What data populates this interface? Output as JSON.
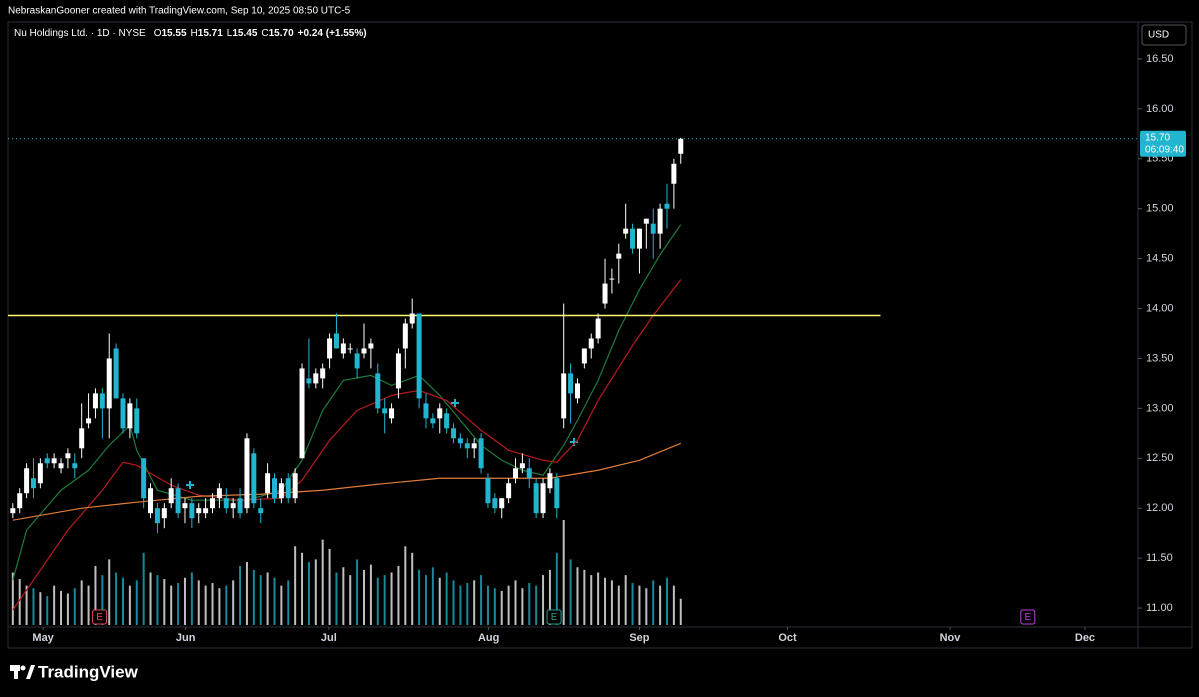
{
  "header": {
    "credit": "NebraskanGooner created with TradingView.com, Sep 10, 2025 08:50 UTC-5",
    "currency": "USD",
    "brand": "TradingView"
  },
  "chart_data": {
    "type": "candlestick",
    "legend": {
      "name": "Nu Holdings Ltd. · 1D · NYSE",
      "fields": [
        {
          "label": "O",
          "value": "15.55"
        },
        {
          "label": "H",
          "value": "15.71"
        },
        {
          "label": "L",
          "value": "15.45"
        },
        {
          "label": "C",
          "value": "15.70"
        }
      ],
      "change": "+0.24 (+1.55%)"
    },
    "up_color": "#ffffff",
    "down_color": "#22b5d0",
    "open": [
      11.95,
      12.0,
      12.15,
      12.3,
      12.25,
      12.5,
      12.45,
      12.4,
      12.5,
      12.45,
      12.6,
      12.85,
      13.0,
      13.15,
      13.0,
      13.6,
      13.1,
      12.8,
      13.0,
      12.5,
      11.95,
      12.0,
      11.9,
      12.05,
      12.2,
      12.0,
      12.05,
      11.95,
      11.95,
      12.0,
      12.1,
      12.1,
      12.0,
      12.1,
      12.0,
      12.55,
      12.0,
      12.15,
      12.3,
      12.1,
      12.3,
      12.1,
      12.5,
      13.3,
      13.25,
      13.3,
      13.5,
      13.75,
      13.55,
      13.6,
      13.55,
      13.55,
      13.6,
      13.35,
      13.0,
      12.9,
      13.2,
      13.6,
      13.85,
      13.95,
      13.05,
      12.9,
      12.9,
      12.95,
      12.8,
      12.7,
      12.65,
      12.6,
      12.7,
      12.3,
      12.1,
      12.0,
      12.1,
      12.3,
      12.4,
      12.4,
      12.25,
      11.95,
      12.2,
      12.3,
      12.9,
      13.35,
      13.1,
      13.45,
      13.6,
      13.7,
      14.05,
      14.3,
      14.5,
      14.75,
      14.8,
      14.6,
      14.85,
      14.85,
      14.75,
      15.05,
      15.25,
      15.55
    ],
    "high": [
      12.05,
      12.2,
      12.45,
      12.5,
      12.5,
      12.55,
      12.55,
      12.5,
      12.6,
      12.55,
      13.05,
      13.15,
      13.2,
      13.2,
      13.75,
      13.65,
      13.15,
      13.1,
      13.1,
      12.5,
      12.25,
      12.05,
      12.05,
      12.3,
      12.25,
      12.1,
      12.1,
      12.05,
      12.1,
      12.15,
      12.25,
      12.2,
      12.1,
      12.2,
      12.75,
      12.6,
      12.1,
      12.45,
      12.35,
      12.3,
      12.35,
      12.4,
      13.45,
      13.7,
      13.4,
      13.45,
      13.75,
      13.95,
      13.7,
      13.65,
      13.6,
      13.85,
      13.7,
      13.45,
      13.1,
      13.05,
      13.6,
      13.9,
      14.1,
      13.95,
      13.15,
      12.95,
      13.05,
      13.0,
      12.85,
      12.75,
      12.7,
      12.7,
      12.75,
      12.35,
      12.15,
      12.1,
      12.3,
      12.5,
      12.55,
      12.5,
      12.3,
      12.3,
      12.4,
      12.35,
      14.05,
      13.45,
      13.3,
      13.6,
      13.75,
      13.95,
      14.5,
      14.4,
      14.65,
      15.05,
      14.85,
      14.8,
      14.9,
      15.0,
      15.05,
      15.25,
      15.5,
      15.71
    ],
    "low": [
      11.9,
      11.95,
      12.1,
      12.1,
      12.2,
      12.4,
      12.4,
      12.35,
      12.4,
      12.3,
      12.5,
      12.8,
      12.9,
      12.7,
      12.7,
      13.1,
      12.75,
      12.7,
      12.7,
      12.0,
      11.9,
      11.75,
      11.8,
      12.0,
      11.9,
      11.85,
      11.8,
      11.85,
      11.9,
      11.95,
      12.0,
      11.95,
      11.9,
      11.9,
      11.95,
      12.0,
      11.85,
      12.1,
      12.05,
      12.05,
      12.05,
      12.05,
      12.5,
      13.2,
      13.2,
      13.2,
      13.4,
      13.6,
      13.5,
      13.55,
      13.3,
      13.5,
      13.4,
      12.95,
      12.75,
      12.85,
      13.1,
      13.4,
      13.8,
      13.0,
      12.8,
      12.8,
      12.75,
      12.75,
      12.65,
      12.6,
      12.5,
      12.5,
      12.35,
      12.0,
      11.95,
      11.9,
      12.05,
      12.25,
      12.35,
      12.2,
      11.9,
      11.9,
      12.15,
      11.9,
      12.8,
      12.85,
      13.05,
      13.4,
      13.5,
      13.65,
      14.0,
      14.15,
      14.25,
      14.7,
      14.55,
      14.35,
      14.6,
      14.5,
      14.6,
      14.8,
      15.0,
      15.45
    ],
    "close": [
      12.0,
      12.15,
      12.4,
      12.2,
      12.45,
      12.45,
      12.5,
      12.45,
      12.55,
      12.4,
      12.8,
      12.9,
      13.15,
      13.0,
      13.5,
      13.1,
      12.8,
      13.05,
      12.75,
      12.1,
      12.2,
      11.85,
      12.0,
      12.2,
      11.95,
      12.05,
      11.9,
      12.0,
      12.0,
      12.1,
      12.2,
      12.0,
      12.05,
      11.95,
      12.7,
      12.05,
      11.95,
      12.35,
      12.1,
      12.25,
      12.1,
      12.35,
      13.4,
      13.25,
      13.35,
      13.4,
      13.7,
      13.6,
      13.65,
      13.6,
      13.4,
      13.6,
      13.65,
      13.0,
      12.95,
      13.0,
      13.55,
      13.85,
      13.95,
      13.1,
      12.9,
      12.85,
      13.0,
      12.8,
      12.7,
      12.65,
      12.6,
      12.65,
      12.4,
      12.05,
      12.0,
      12.1,
      12.25,
      12.4,
      12.45,
      12.3,
      11.95,
      12.25,
      12.35,
      12.0,
      13.35,
      13.15,
      13.25,
      13.6,
      13.7,
      13.9,
      14.25,
      14.3,
      14.55,
      14.8,
      14.6,
      14.8,
      14.9,
      14.75,
      15.0,
      15.0,
      15.45,
      15.7
    ],
    "volume": [
      40,
      35,
      30,
      28,
      25,
      22,
      30,
      26,
      24,
      28,
      34,
      30,
      45,
      38,
      50,
      40,
      36,
      30,
      34,
      55,
      40,
      38,
      35,
      30,
      32,
      36,
      40,
      34,
      30,
      32,
      28,
      30,
      34,
      45,
      48,
      42,
      38,
      40,
      36,
      30,
      34,
      60,
      55,
      48,
      50,
      65,
      58,
      40,
      44,
      38,
      50,
      42,
      46,
      36,
      38,
      40,
      45,
      60,
      55,
      42,
      38,
      44,
      36,
      40,
      34,
      30,
      32,
      34,
      38,
      30,
      28,
      26,
      30,
      34,
      28,
      32,
      30,
      38,
      42,
      55,
      80,
      50,
      44,
      42,
      38,
      40,
      36,
      34,
      30,
      38,
      32,
      30,
      28,
      34,
      30,
      36,
      30,
      20
    ],
    "lines": [
      {
        "color": "#1e7a3c",
        "x": [
          0,
          2,
          7,
          11,
          14,
          17,
          18,
          21,
          26,
          30,
          34,
          39,
          42,
          45,
          48,
          52,
          55,
          59,
          62,
          65,
          68,
          71,
          74,
          77,
          80,
          82,
          85,
          88,
          91,
          94,
          97
        ],
        "values": [
          11.28,
          11.78,
          12.18,
          12.38,
          12.63,
          12.83,
          12.58,
          12.18,
          12.08,
          12.08,
          12.08,
          12.18,
          12.48,
          12.98,
          13.28,
          13.33,
          13.23,
          13.33,
          13.13,
          12.88,
          12.63,
          12.48,
          12.38,
          12.33,
          12.63,
          12.88,
          13.28,
          13.78,
          14.19,
          14.54,
          14.84
        ]
      },
      {
        "color": "#b71c1c",
        "x": [
          0,
          4,
          8,
          13,
          16,
          18,
          23,
          27,
          33,
          39,
          42,
          46,
          50,
          55,
          59,
          63,
          68,
          72,
          77,
          79,
          82,
          85,
          90,
          93,
          97
        ],
        "values": [
          10.98,
          11.38,
          11.78,
          12.18,
          12.46,
          12.43,
          12.23,
          12.13,
          12.08,
          12.1,
          12.28,
          12.68,
          12.98,
          13.13,
          13.18,
          13.08,
          12.78,
          12.58,
          12.48,
          12.46,
          12.68,
          13.08,
          13.63,
          13.93,
          14.29
        ]
      },
      {
        "color": "#e07b39",
        "x": [
          0,
          10,
          18,
          27,
          36,
          45,
          53,
          62,
          71,
          78,
          85,
          91,
          97
        ],
        "values": [
          11.88,
          12.0,
          12.06,
          12.12,
          12.14,
          12.18,
          12.24,
          12.3,
          12.3,
          12.3,
          12.38,
          12.48,
          12.65
        ]
      }
    ],
    "hline": {
      "value": 13.93,
      "color": "#ffff66",
      "xrange": [
        -0.7,
        126
      ]
    },
    "price_label": {
      "value": 15.7,
      "label": "15.70",
      "countdown": "06:09:40"
    },
    "events": [
      {
        "x": 12.6,
        "label": "E",
        "color": "#e04a5a"
      },
      {
        "x": 78.6,
        "label": "E",
        "color": "#2a9d8f"
      },
      {
        "x": 147.4,
        "label": "E",
        "color": "#c040e0"
      }
    ],
    "xlim": [
      -0.7,
      163.4
    ],
    "xticks": [
      {
        "value": 4.4,
        "label": "May"
      },
      {
        "value": 25.1,
        "label": "Jun"
      },
      {
        "value": 45.9,
        "label": "Jul"
      },
      {
        "value": 69.1,
        "label": "Aug"
      },
      {
        "value": 91,
        "label": "Sep"
      },
      {
        "value": 112.5,
        "label": "Oct"
      },
      {
        "value": 136.1,
        "label": "Nov"
      },
      {
        "value": 155.7,
        "label": "Dec"
      }
    ],
    "ylim": [
      10.81,
      16.87
    ],
    "yticks": [
      {
        "value": 11,
        "label": "11.00"
      },
      {
        "value": 11.5,
        "label": "11.50"
      },
      {
        "value": 12,
        "label": "12.00"
      },
      {
        "value": 12.5,
        "label": "12.50"
      },
      {
        "value": 13,
        "label": "13.00"
      },
      {
        "value": 13.5,
        "label": "13.50"
      },
      {
        "value": 14,
        "label": "14.00"
      },
      {
        "value": 14.5,
        "label": "14.50"
      },
      {
        "value": 15,
        "label": "15.00"
      },
      {
        "value": 15.5,
        "label": "15.50"
      },
      {
        "value": 16,
        "label": "16.00"
      },
      {
        "value": 16.5,
        "label": "16.50"
      }
    ]
  }
}
